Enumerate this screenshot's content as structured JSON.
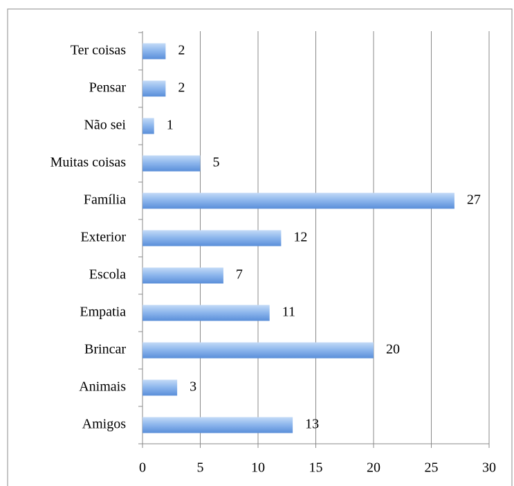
{
  "chart_data": {
    "type": "bar",
    "orientation": "horizontal",
    "categories": [
      "Amigos",
      "Animais",
      "Brincar",
      "Empatia",
      "Escola",
      "Exterior",
      "Família",
      "Muitas coisas",
      "Não sei",
      "Pensar",
      "Ter coisas"
    ],
    "values": [
      13,
      3,
      20,
      11,
      7,
      12,
      27,
      5,
      1,
      2,
      2
    ],
    "color": "#6f9fe0",
    "xlim": [
      0,
      30
    ],
    "xticks": [
      0,
      5,
      10,
      15,
      20,
      25,
      30
    ],
    "grid": true
  }
}
